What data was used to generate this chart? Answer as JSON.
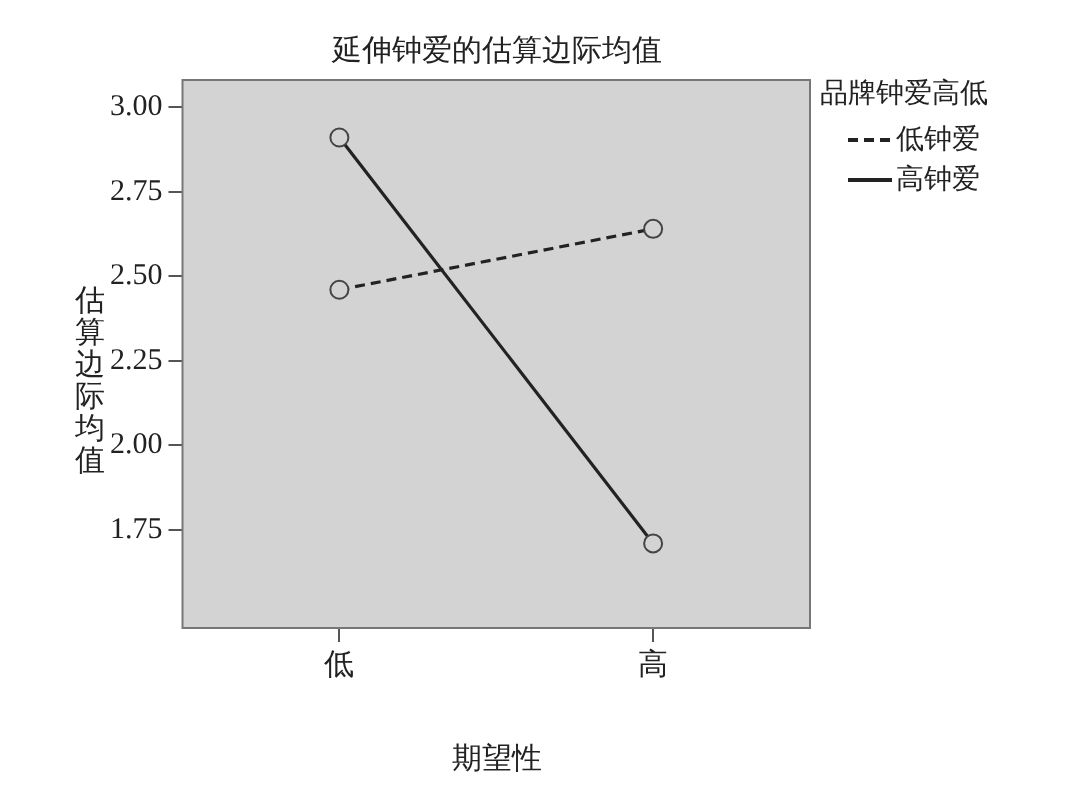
{
  "chart_data": {
    "type": "line",
    "title": "延伸钟爱的估算边际均值",
    "xlabel": "期望性",
    "ylabel": "估算边际均值",
    "legend_title": "品牌钟爱高低",
    "categories": [
      "低",
      "高"
    ],
    "series": [
      {
        "name": "低钟爱",
        "color": "#222222",
        "values": [
          2.46,
          2.64
        ],
        "line_style": "dashed"
      },
      {
        "name": "高钟爱",
        "color": "#222222",
        "values": [
          2.91,
          1.71
        ],
        "line_style": "solid"
      }
    ],
    "ylim": [
      1.46,
      3.08
    ],
    "yticks": [
      {
        "value": 1.75,
        "label": "1.75"
      },
      {
        "value": 2.0,
        "label": "2.00"
      },
      {
        "value": 2.25,
        "label": "2.25"
      },
      {
        "value": 2.5,
        "label": "2.50"
      },
      {
        "value": 2.75,
        "label": "2.75"
      },
      {
        "value": 3.0,
        "label": "3.00"
      }
    ],
    "grid": false,
    "legend": "top right",
    "marker": "circle"
  }
}
